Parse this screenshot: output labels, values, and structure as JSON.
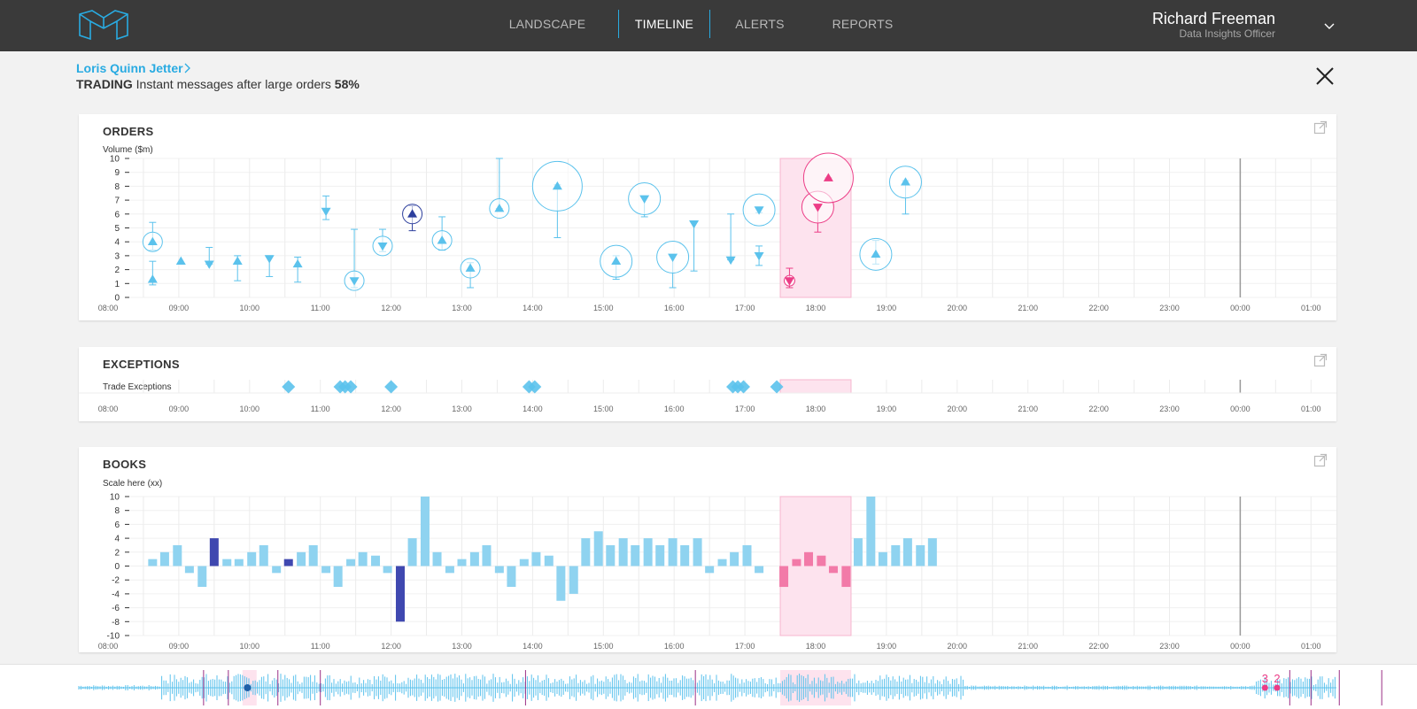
{
  "colors": {
    "accent": "#29abe2",
    "markerBlue": "#5bc2ec",
    "darkBlue": "#2d3f9d",
    "pink": "#ec3c86",
    "highlight": "#fde3ee",
    "barBlue": "#8fd3f0",
    "barDark": "#3f48b0",
    "barPink": "#f27aa8"
  },
  "nav": {
    "items": [
      {
        "label": "LANDSCAPE",
        "active": false
      },
      {
        "label": "TIMELINE",
        "active": true
      },
      {
        "label": "ALERTS",
        "active": false
      },
      {
        "label": "REPORTS",
        "active": false
      }
    ]
  },
  "user": {
    "name": "Richard Freeman",
    "role": "Data Insights Officer"
  },
  "breadcrumb": {
    "name": "Loris Quinn Jetter"
  },
  "subtitle": {
    "category": "TRADING",
    "description": "Instant messages after large orders",
    "percent": "58%"
  },
  "time_axis": {
    "labels": [
      "08:00",
      "09:00",
      "10:00",
      "11:00",
      "12:00",
      "13:00",
      "14:00",
      "15:00",
      "16:00",
      "17:00",
      "18:00",
      "19:00",
      "20:00",
      "21:00",
      "22:00",
      "23:00",
      "00:00",
      "01:00"
    ],
    "highlight_range": [
      "17:30",
      "18:30"
    ],
    "current_marker": "00:00"
  },
  "orders": {
    "title": "ORDERS",
    "ylabel": "Volume ($m)"
  },
  "exceptions": {
    "title": "EXCEPTIONS",
    "ylabel": "Trade Exceptions"
  },
  "books": {
    "title": "BOOKS",
    "ylabel": "Scale here (xx)"
  },
  "scrubber": {
    "badges": [
      {
        "label": "3"
      },
      {
        "label": "2"
      }
    ]
  },
  "chart_data": [
    {
      "type": "scatter",
      "name": "orders",
      "title": "ORDERS",
      "ylabel": "Volume ($m)",
      "ylim": [
        0,
        10
      ],
      "yticks": [
        0,
        1,
        2,
        3,
        4,
        5,
        6,
        7,
        8,
        9,
        10
      ],
      "points": [
        {
          "t": 8.63,
          "y": 1.3,
          "size": 0,
          "dir": "up",
          "lo": 0.9,
          "hi": 2.6,
          "color": "blue"
        },
        {
          "t": 8.63,
          "y": 4.0,
          "size": 1,
          "dir": "up",
          "lo": 3.4,
          "hi": 5.4,
          "color": "blue"
        },
        {
          "t": 9.03,
          "y": 2.6,
          "size": 0,
          "dir": "up",
          "color": "blue"
        },
        {
          "t": 9.43,
          "y": 2.4,
          "size": 0,
          "dir": "down",
          "lo": 2.4,
          "hi": 3.6,
          "color": "blue"
        },
        {
          "t": 9.83,
          "y": 2.6,
          "size": 0,
          "dir": "up",
          "lo": 1.2,
          "hi": 3.0,
          "color": "blue"
        },
        {
          "t": 10.28,
          "y": 2.8,
          "size": 0,
          "dir": "down",
          "lo": 1.5,
          "hi": 3.0,
          "color": "blue"
        },
        {
          "t": 10.68,
          "y": 2.4,
          "size": 0,
          "dir": "up",
          "lo": 1.1,
          "hi": 2.9,
          "color": "blue"
        },
        {
          "t": 11.08,
          "y": 6.2,
          "size": 0,
          "dir": "down",
          "lo": 5.6,
          "hi": 7.3,
          "color": "blue"
        },
        {
          "t": 11.48,
          "y": 1.2,
          "size": 1,
          "dir": "down",
          "lo": 0.7,
          "hi": 4.9,
          "color": "blue"
        },
        {
          "t": 11.88,
          "y": 3.7,
          "size": 1,
          "dir": "down",
          "lo": 3.3,
          "hi": 4.9,
          "color": "blue"
        },
        {
          "t": 12.3,
          "y": 6.0,
          "size": 1,
          "dir": "up",
          "lo": 4.8,
          "hi": 6.6,
          "color": "dark"
        },
        {
          "t": 12.72,
          "y": 4.1,
          "size": 1,
          "dir": "up",
          "lo": 3.4,
          "hi": 5.8,
          "color": "blue"
        },
        {
          "t": 13.12,
          "y": 2.1,
          "size": 1,
          "dir": "up",
          "lo": 0.7,
          "hi": 2.5,
          "color": "blue"
        },
        {
          "t": 13.53,
          "y": 6.4,
          "size": 1,
          "dir": "up",
          "lo": 6.4,
          "hi": 10.0,
          "color": "blue"
        },
        {
          "t": 14.35,
          "y": 8.0,
          "size": 3,
          "dir": "up",
          "lo": 4.3,
          "hi": 8.1,
          "color": "blue"
        },
        {
          "t": 15.18,
          "y": 2.6,
          "size": 2,
          "dir": "up",
          "lo": 1.3,
          "hi": 3.0,
          "color": "blue"
        },
        {
          "t": 15.58,
          "y": 7.1,
          "size": 2,
          "dir": "down",
          "lo": 5.8,
          "hi": 7.3,
          "color": "blue"
        },
        {
          "t": 15.98,
          "y": 2.9,
          "size": 2,
          "dir": "down",
          "lo": 0.7,
          "hi": 3.0,
          "color": "blue"
        },
        {
          "t": 16.28,
          "y": 5.3,
          "size": 0,
          "dir": "down",
          "lo": 1.9,
          "hi": 5.4,
          "color": "blue"
        },
        {
          "t": 16.8,
          "y": 2.7,
          "size": 0,
          "dir": "down",
          "lo": 2.7,
          "hi": 6.0,
          "color": "blue"
        },
        {
          "t": 17.2,
          "y": 6.3,
          "size": 2,
          "dir": "down",
          "lo": 6.1,
          "hi": 6.5,
          "color": "blue"
        },
        {
          "t": 17.2,
          "y": 3.0,
          "size": 0,
          "dir": "down",
          "lo": 2.3,
          "hi": 3.7,
          "color": "blue"
        },
        {
          "t": 17.63,
          "y": 1.2,
          "size": 0,
          "dir": "down",
          "lo": 0.7,
          "hi": 2.1,
          "color": "pink"
        },
        {
          "t": 18.03,
          "y": 6.5,
          "size": 2,
          "dir": "down",
          "lo": 4.7,
          "hi": 6.7,
          "color": "pink"
        },
        {
          "t": 18.18,
          "y": 8.6,
          "size": 3,
          "dir": "up",
          "lo": 8.6,
          "hi": 8.6,
          "color": "pink"
        },
        {
          "t": 18.85,
          "y": 3.1,
          "size": 2,
          "dir": "up",
          "lo": 2.4,
          "hi": 4.1,
          "color": "blue"
        },
        {
          "t": 19.27,
          "y": 8.3,
          "size": 2,
          "dir": "up",
          "lo": 6.0,
          "hi": 8.4,
          "color": "blue"
        }
      ]
    },
    {
      "type": "scatter",
      "name": "exceptions",
      "title": "EXCEPTIONS",
      "ylabel": "Trade Exceptions",
      "events": [
        10.55,
        11.28,
        11.35,
        11.43,
        12.0,
        13.95,
        14.03,
        16.83,
        16.9,
        16.98,
        17.45
      ]
    },
    {
      "type": "bar",
      "name": "books",
      "title": "BOOKS",
      "ylabel": "Scale here (xx)",
      "ylim": [
        -10,
        10
      ],
      "yticks": [
        -10,
        -8,
        -6,
        -4,
        -2,
        0,
        2,
        4,
        6,
        8,
        10
      ],
      "bars": [
        {
          "t": 8.63,
          "v": 1
        },
        {
          "t": 8.8,
          "v": 2
        },
        {
          "t": 8.98,
          "v": 3
        },
        {
          "t": 9.15,
          "v": -1
        },
        {
          "t": 9.33,
          "v": -3
        },
        {
          "t": 9.5,
          "v": 4,
          "c": "dark"
        },
        {
          "t": 9.68,
          "v": 1
        },
        {
          "t": 9.85,
          "v": 1
        },
        {
          "t": 10.03,
          "v": 2
        },
        {
          "t": 10.2,
          "v": 3
        },
        {
          "t": 10.38,
          "v": -1
        },
        {
          "t": 10.55,
          "v": 1,
          "c": "dark"
        },
        {
          "t": 10.73,
          "v": 2
        },
        {
          "t": 10.9,
          "v": 3
        },
        {
          "t": 11.08,
          "v": -1
        },
        {
          "t": 11.25,
          "v": -3
        },
        {
          "t": 11.43,
          "v": 1
        },
        {
          "t": 11.6,
          "v": 2
        },
        {
          "t": 11.78,
          "v": 1.5
        },
        {
          "t": 11.95,
          "v": -1
        },
        {
          "t": 12.13,
          "v": -8,
          "c": "dark"
        },
        {
          "t": 12.3,
          "v": 4
        },
        {
          "t": 12.48,
          "v": 10
        },
        {
          "t": 12.65,
          "v": 2
        },
        {
          "t": 12.83,
          "v": -1
        },
        {
          "t": 13.0,
          "v": 1
        },
        {
          "t": 13.18,
          "v": 2
        },
        {
          "t": 13.35,
          "v": 3
        },
        {
          "t": 13.53,
          "v": -1
        },
        {
          "t": 13.7,
          "v": -3
        },
        {
          "t": 13.88,
          "v": 1
        },
        {
          "t": 14.05,
          "v": 2
        },
        {
          "t": 14.23,
          "v": 1.5
        },
        {
          "t": 14.4,
          "v": -5
        },
        {
          "t": 14.58,
          "v": -4
        },
        {
          "t": 14.75,
          "v": 4
        },
        {
          "t": 14.93,
          "v": 5
        },
        {
          "t": 15.1,
          "v": 3
        },
        {
          "t": 15.28,
          "v": 4
        },
        {
          "t": 15.45,
          "v": 3
        },
        {
          "t": 15.63,
          "v": 4
        },
        {
          "t": 15.8,
          "v": 3
        },
        {
          "t": 15.98,
          "v": 4
        },
        {
          "t": 16.15,
          "v": 3
        },
        {
          "t": 16.33,
          "v": 4
        },
        {
          "t": 16.5,
          "v": -1
        },
        {
          "t": 16.68,
          "v": 1
        },
        {
          "t": 16.85,
          "v": 2
        },
        {
          "t": 17.03,
          "v": 3
        },
        {
          "t": 17.2,
          "v": -1
        },
        {
          "t": 17.55,
          "v": -3,
          "c": "pink"
        },
        {
          "t": 17.73,
          "v": 1,
          "c": "pink"
        },
        {
          "t": 17.9,
          "v": 2,
          "c": "pink"
        },
        {
          "t": 18.08,
          "v": 1.5,
          "c": "pink"
        },
        {
          "t": 18.25,
          "v": -1,
          "c": "pink"
        },
        {
          "t": 18.43,
          "v": -3,
          "c": "pink"
        },
        {
          "t": 18.6,
          "v": 4
        },
        {
          "t": 18.78,
          "v": 10
        },
        {
          "t": 18.95,
          "v": 2
        },
        {
          "t": 19.13,
          "v": 3
        },
        {
          "t": 19.3,
          "v": 4
        },
        {
          "t": 19.48,
          "v": 3
        },
        {
          "t": 19.65,
          "v": 4
        }
      ]
    }
  ]
}
